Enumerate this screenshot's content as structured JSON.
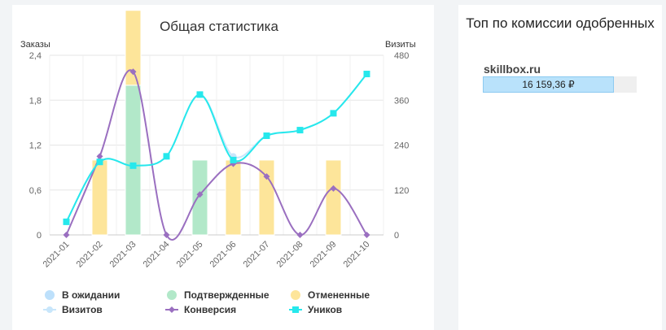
{
  "chart_data": {
    "type": "bar",
    "title": "Общая статистика",
    "y_left_label": "Заказы",
    "y_right_label": "Визиты",
    "ylim_left": [
      0,
      2.4
    ],
    "ylim_right": [
      0,
      480
    ],
    "y_left_ticks": [
      "0",
      "0,6",
      "1,2",
      "1,8",
      "2,4"
    ],
    "y_right_ticks": [
      "0",
      "120",
      "240",
      "360",
      "480"
    ],
    "categories": [
      "2021-01",
      "2021-02",
      "2021-03",
      "2021-04",
      "2021-05",
      "2021-06",
      "2021-07",
      "2021-08",
      "2021-09",
      "2021-10"
    ],
    "grid": true,
    "legend_position": "bottom",
    "series": [
      {
        "name": "В ожидании",
        "type": "bar",
        "axis": "left",
        "color": "#bde0fb",
        "values": [
          0,
          0,
          0,
          0,
          0,
          0,
          0,
          0,
          0,
          0
        ]
      },
      {
        "name": "Подтвержденные",
        "type": "bar",
        "axis": "left",
        "color": "#b2e8c9",
        "values": [
          0,
          0,
          2,
          0,
          1,
          0,
          0,
          0,
          0,
          0
        ]
      },
      {
        "name": "Отмененные",
        "type": "bar",
        "axis": "left",
        "color": "#fde59a",
        "values": [
          0,
          1,
          1,
          0,
          0,
          1,
          1,
          0,
          1,
          0
        ]
      },
      {
        "name": "Визитов",
        "type": "line",
        "axis": "right",
        "color": "#c8e6fb",
        "marker": "circle",
        "values": [
          35,
          195,
          185,
          210,
          375,
          210,
          265,
          280,
          325,
          430
        ]
      },
      {
        "name": "Конверсия",
        "type": "line",
        "axis": "left",
        "color": "#9a6fc0",
        "marker": "diamond",
        "values": [
          0,
          1.05,
          2.18,
          0,
          0.54,
          0.95,
          0.78,
          0,
          0.62,
          0
        ]
      },
      {
        "name": "Уников",
        "type": "line",
        "axis": "right",
        "color": "#26e8ec",
        "marker": "square",
        "values": [
          35,
          195,
          185,
          210,
          375,
          200,
          265,
          280,
          325,
          430
        ]
      }
    ]
  },
  "top_panel": {
    "title": "Топ по комиссии одобренных",
    "items": [
      {
        "site": "skillbox.ru",
        "value_label": "16 159,36 ₽",
        "share": 0.85
      }
    ]
  }
}
